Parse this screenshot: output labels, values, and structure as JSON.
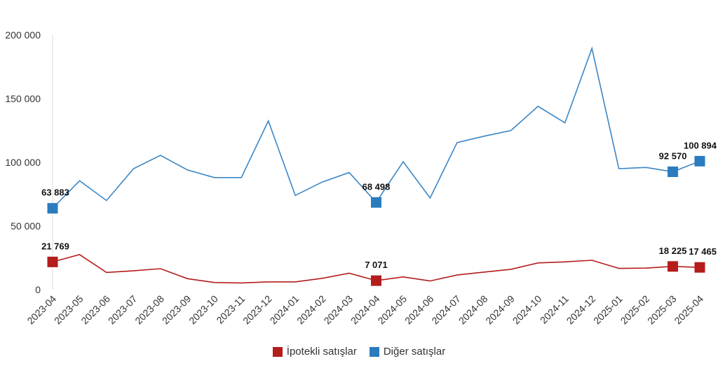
{
  "chart_data": {
    "type": "line",
    "title": "",
    "xlabel": "",
    "ylabel": "",
    "ylim": [
      0,
      200000
    ],
    "yticks": [
      0,
      50000,
      100000,
      150000,
      200000
    ],
    "ytick_labels": [
      "0",
      "50 000",
      "100 000",
      "150 000",
      "200 000"
    ],
    "grid": false,
    "legend_position": "bottom-center",
    "categories": [
      "2023-04",
      "2023-05",
      "2023-06",
      "2023-07",
      "2023-08",
      "2023-09",
      "2023-10",
      "2023-11",
      "2023-12",
      "2024-01",
      "2024-02",
      "2024-03",
      "2024-04",
      "2024-05",
      "2024-06",
      "2024-07",
      "2024-08",
      "2024-09",
      "2024-10",
      "2024-11",
      "2024-12",
      "2025-01",
      "2025-02",
      "2025-03",
      "2025-04"
    ],
    "series": [
      {
        "name": "İpotekli satışlar",
        "color": "#b51c1c",
        "values": [
          21769,
          27500,
          13500,
          14800,
          16500,
          8600,
          5600,
          5300,
          6100,
          6100,
          8900,
          12900,
          7071,
          10000,
          6800,
          11500,
          13800,
          16000,
          21000,
          21800,
          23100,
          16700,
          16900,
          18225,
          17465
        ],
        "labels": [
          {
            "index": 0,
            "text": "21 769"
          },
          {
            "index": 12,
            "text": "7 071"
          },
          {
            "index": 23,
            "text": "18 225"
          },
          {
            "index": 24,
            "text": "17 465"
          }
        ]
      },
      {
        "name": "Diğer satışlar",
        "color": "#3a86c6",
        "marker_color": "#2b7bbf",
        "values": [
          63883,
          85500,
          70000,
          95000,
          105500,
          94000,
          88000,
          88000,
          132500,
          74000,
          84500,
          92000,
          68498,
          100500,
          72000,
          115500,
          120500,
          125000,
          144000,
          131000,
          189500,
          95000,
          96000,
          92570,
          100894
        ],
        "labels": [
          {
            "index": 0,
            "text": "63 883"
          },
          {
            "index": 12,
            "text": "68 498"
          },
          {
            "index": 23,
            "text": "92 570"
          },
          {
            "index": 24,
            "text": "100 894"
          }
        ]
      }
    ]
  }
}
